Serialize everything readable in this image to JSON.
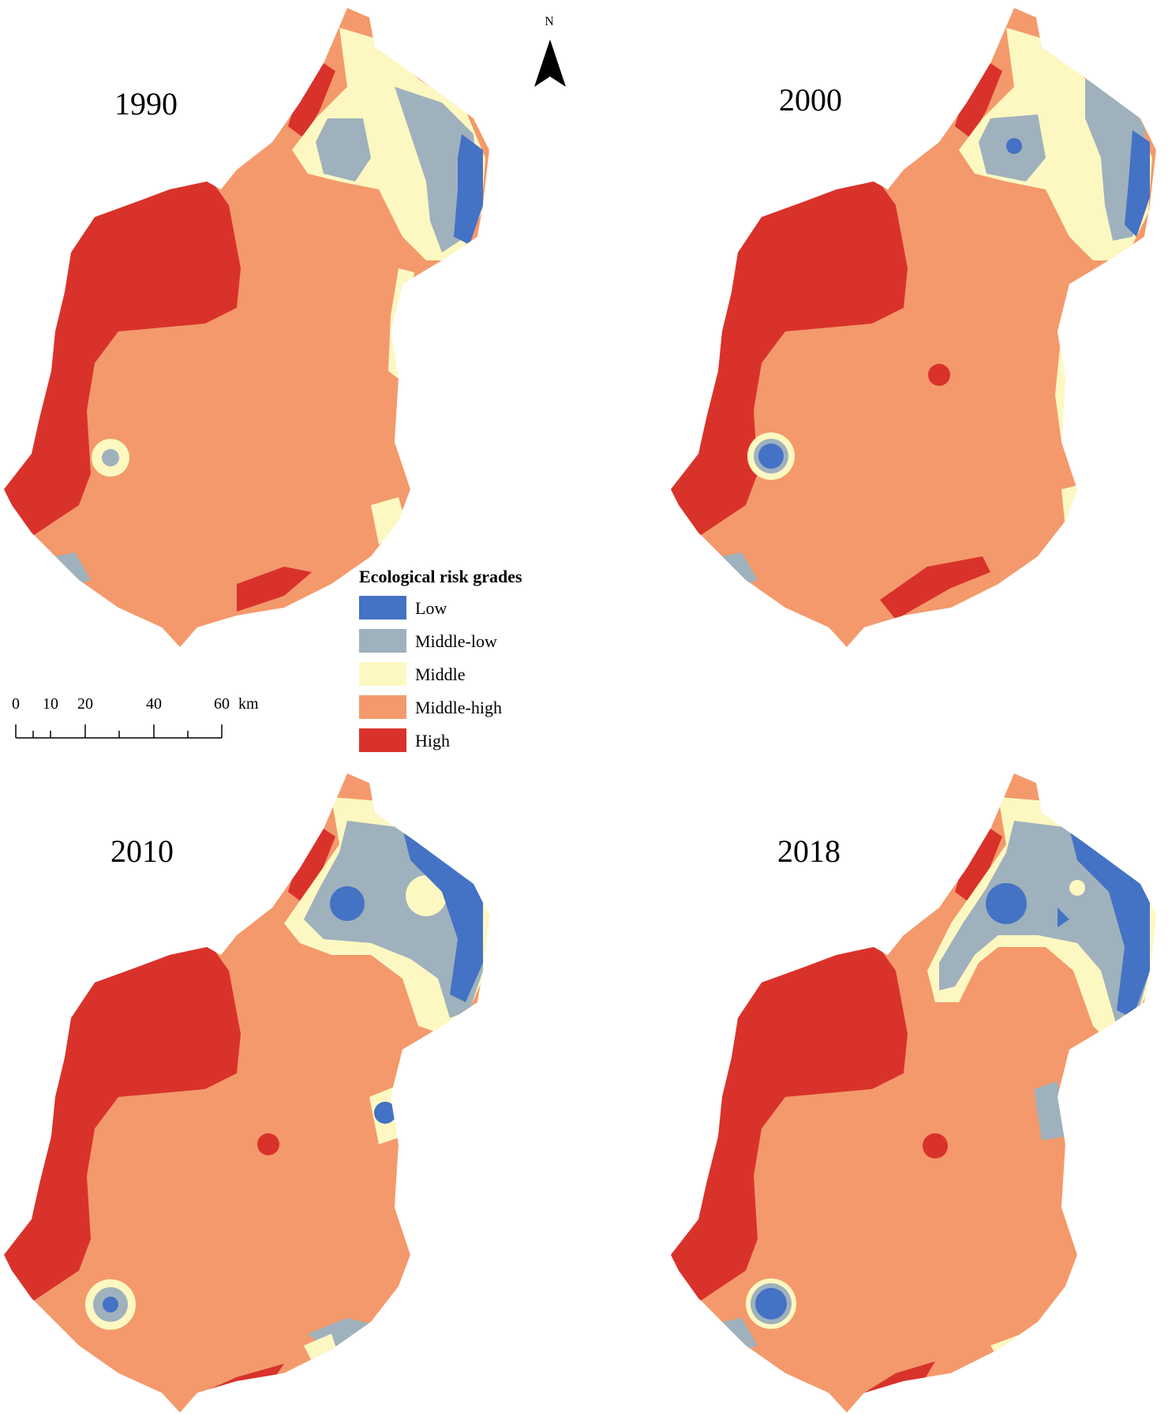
{
  "maps": [
    {
      "year": "1990"
    },
    {
      "year": "2000"
    },
    {
      "year": "2010"
    },
    {
      "year": "2018"
    }
  ],
  "north_arrow": {
    "label": "N"
  },
  "legend": {
    "title": "Ecological risk grades",
    "items": [
      {
        "label": "Low",
        "color": "#4472c4"
      },
      {
        "label": "Middle-low",
        "color": "#9fb1bd"
      },
      {
        "label": "Middle",
        "color": "#fdf8c1"
      },
      {
        "label": "Middle-high",
        "color": "#f4996b"
      },
      {
        "label": "High",
        "color": "#d9322b"
      }
    ]
  },
  "scale_bar": {
    "ticks": [
      "0",
      "10",
      "20",
      "40",
      "60"
    ],
    "unit": "km"
  }
}
